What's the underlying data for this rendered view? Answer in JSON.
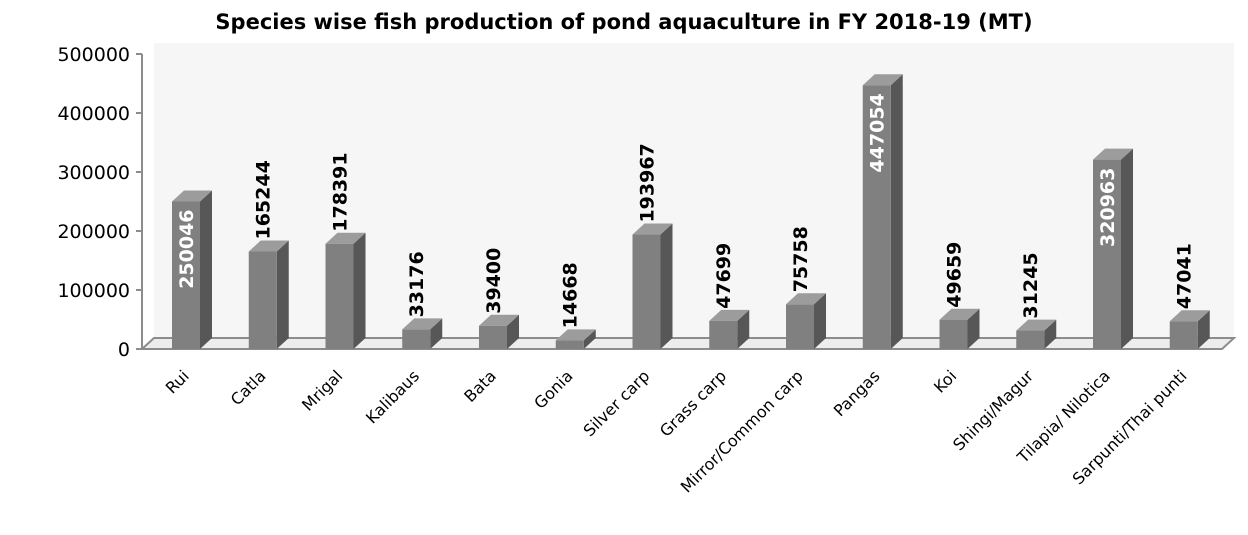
{
  "chart_data": {
    "type": "bar",
    "title": "Species wise fish production of pond aquaculture in FY 2018-19 (MT)",
    "xlabel": "",
    "ylabel": "",
    "ylim": [
      0,
      500000
    ],
    "yticks": [
      "0",
      "100000",
      "200000",
      "300000",
      "400000",
      "500000"
    ],
    "categories": [
      "Rui",
      "Catla",
      "Mrigal",
      "Kalibaus",
      "Bata",
      "Gonia",
      "Silver carp",
      "Grass carp",
      "Mirror/Common carp",
      "Pangas",
      "Koi",
      "Shingi/Magur",
      "Tilapia/ Nilotica",
      "Sarpunti/Thai punti"
    ],
    "values": [
      250046,
      165244,
      178391,
      33176,
      39400,
      14668,
      193967,
      47699,
      75758,
      447054,
      49659,
      31245,
      320963,
      47041
    ],
    "data_labels": [
      "250046",
      "165244",
      "178391",
      "33176",
      "39400",
      "14668",
      "193967",
      "47699",
      "75758",
      "447054",
      "49659",
      "31245",
      "320963",
      "47041"
    ],
    "grid": false,
    "legend": "none",
    "style": "3d-column",
    "colors": {
      "bar_front": "#808080",
      "bar_side": "#575757",
      "bar_top": "#9c9c9c",
      "floor": "#ededed",
      "wall": "#f6f6f6",
      "axis": "#8c8c8c"
    }
  }
}
